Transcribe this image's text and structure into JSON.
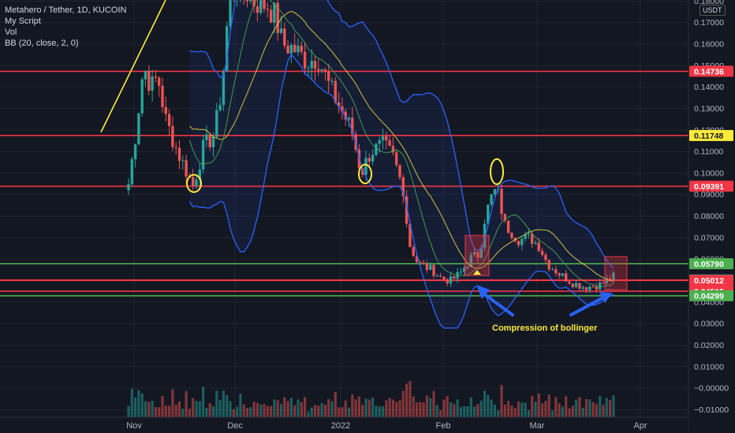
{
  "legend": {
    "symbol": "Metahero / Tether, 1D, KUCOIN",
    "script": "My Script",
    "vol": "Vol",
    "bb": "BB (20, close, 2, 0)"
  },
  "unit": "USDT",
  "chart_data": {
    "type": "candlestick",
    "x_ticks": [
      "Nov",
      "Dec",
      "2022",
      "Feb",
      "Mar",
      "Apr"
    ],
    "y_ticks": [
      "0.18000",
      "0.17000",
      "0.16000",
      "0.15000",
      "0.14000",
      "0.13000",
      "0.12000",
      "0.11000",
      "0.10000",
      "0.09000",
      "0.08000",
      "0.07000",
      "0.06000",
      "0.05000",
      "0.04000",
      "0.03000",
      "0.02000",
      "0.01000",
      "−0.00000",
      "−0.01000"
    ],
    "ylim": [
      -0.0135,
      0.1805
    ],
    "levels": [
      {
        "value": 0.14736,
        "label": "0.14736",
        "color": "#f23645",
        "badge_bg": "#f23645",
        "badge_fg": "#ffffff"
      },
      {
        "value": 0.11748,
        "label": "0.11748",
        "color": "#f23645",
        "badge_bg": "#ffeb3b",
        "badge_fg": "#131722"
      },
      {
        "value": 0.09391,
        "label": "0.09391",
        "color": "#f23645",
        "badge_bg": "#f23645",
        "badge_fg": "#ffffff"
      },
      {
        "value": 0.0579,
        "label": "0.05790",
        "color": "#4caf50",
        "badge_bg": "#4caf50",
        "badge_fg": "#ffffff"
      },
      {
        "value": 0.05033,
        "label": "0.05033",
        "color": "#f23645",
        "badge_bg": "#26a69a",
        "badge_fg": "#ffffff"
      },
      {
        "value": 0.05012,
        "label": "0.05012",
        "color": "#f23645",
        "badge_bg": "#f23645",
        "badge_fg": "#ffffff"
      },
      {
        "value": 0.04515,
        "label": "0.04515",
        "color": "#f23645",
        "badge_bg": "#f23645",
        "badge_fg": "#ffffff"
      },
      {
        "value": 0.04299,
        "label": "0.04299",
        "color": "#4caf50",
        "badge_bg": "#4caf50",
        "badge_fg": "#ffffff"
      }
    ],
    "annotations": [
      {
        "text": "Compression of bollinger"
      }
    ],
    "colors": {
      "up": "#26a69a",
      "down": "#ef5350",
      "bb_band": "#2962ff",
      "bb_basis": "#ffeb3b",
      "ma_short": "#4caf50",
      "trend": "#ffeb3b"
    }
  }
}
